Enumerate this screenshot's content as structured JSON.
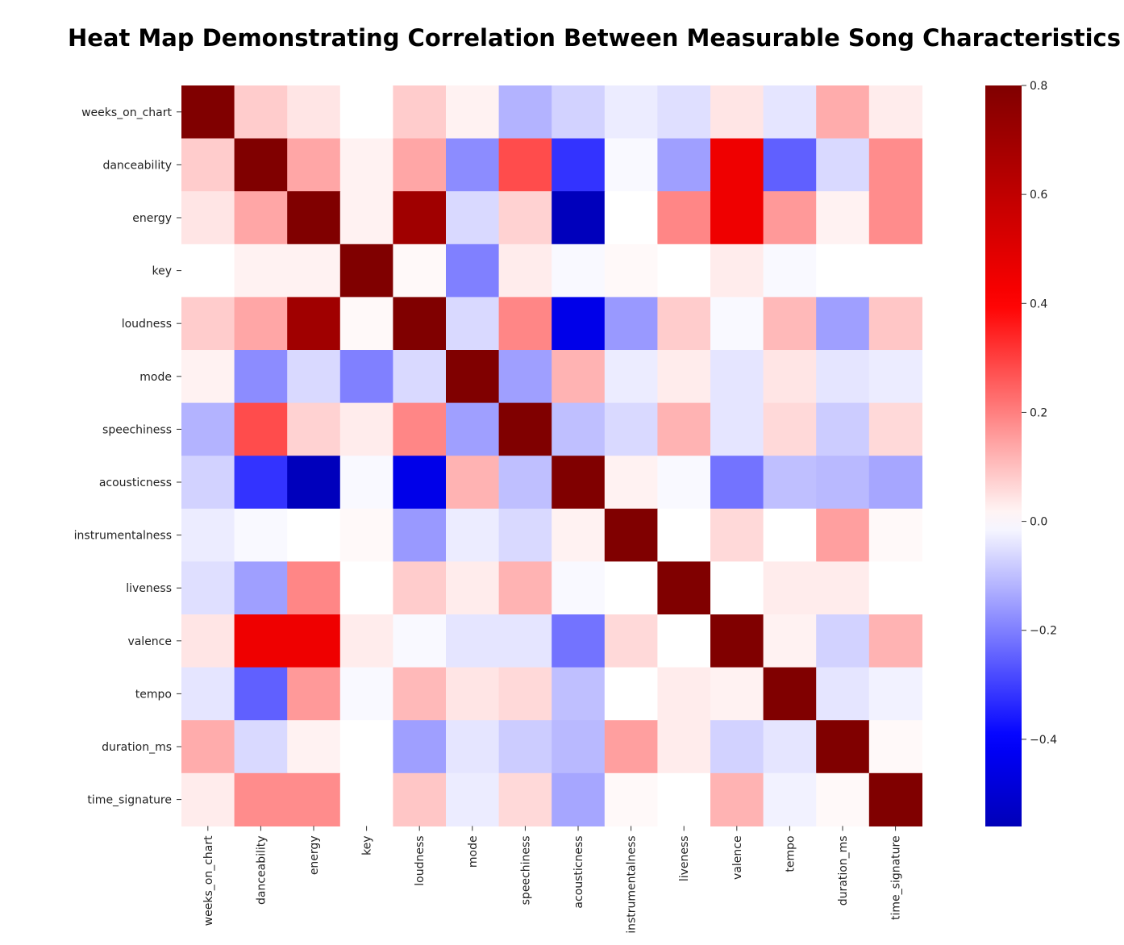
{
  "chart_data": {
    "type": "heatmap",
    "title": "Heat Map Demonstrating Correlation Between Measurable Song Characteristics",
    "x_labels": [
      "weeks_on_chart",
      "danceability",
      "energy",
      "key",
      "loudness",
      "mode",
      "speechiness",
      "acousticness",
      "instrumentalness",
      "liveness",
      "valence",
      "tempo",
      "duration_ms",
      "time_signature"
    ],
    "y_labels": [
      "weeks_on_chart",
      "danceability",
      "energy",
      "key",
      "loudness",
      "mode",
      "speechiness",
      "acousticness",
      "instrumentalness",
      "liveness",
      "valence",
      "tempo",
      "duration_ms",
      "time_signature"
    ],
    "values": [
      [
        1.0,
        0.08,
        0.04,
        0.0,
        0.08,
        0.02,
        -0.12,
        -0.07,
        -0.03,
        -0.05,
        0.04,
        -0.04,
        0.13,
        0.03
      ],
      [
        0.08,
        1.0,
        0.14,
        0.02,
        0.14,
        -0.18,
        0.28,
        -0.32,
        -0.01,
        -0.15,
        0.45,
        -0.25,
        -0.06,
        0.18
      ],
      [
        0.04,
        0.14,
        1.0,
        0.02,
        0.7,
        -0.06,
        0.07,
        -0.55,
        0.0,
        0.19,
        0.45,
        0.16,
        0.02,
        0.18
      ],
      [
        0.0,
        0.02,
        0.02,
        1.0,
        0.01,
        -0.2,
        0.03,
        -0.01,
        0.01,
        0.0,
        0.03,
        -0.01,
        0.0,
        0.0
      ],
      [
        0.08,
        0.14,
        0.7,
        0.01,
        1.0,
        -0.06,
        0.19,
        -0.45,
        -0.16,
        0.08,
        -0.01,
        0.11,
        -0.15,
        0.09
      ],
      [
        0.02,
        -0.18,
        -0.06,
        -0.2,
        -0.06,
        1.0,
        -0.15,
        0.12,
        -0.03,
        0.03,
        -0.04,
        0.04,
        -0.04,
        -0.03
      ],
      [
        -0.12,
        0.28,
        0.07,
        0.03,
        0.19,
        -0.15,
        1.0,
        -0.1,
        -0.06,
        0.12,
        -0.04,
        0.06,
        -0.08,
        0.06
      ],
      [
        -0.07,
        -0.32,
        -0.55,
        -0.01,
        -0.45,
        0.12,
        -0.1,
        1.0,
        0.02,
        -0.01,
        -0.22,
        -0.1,
        -0.11,
        -0.14
      ],
      [
        -0.03,
        -0.01,
        0.0,
        0.01,
        -0.16,
        -0.03,
        -0.06,
        0.02,
        1.0,
        0.0,
        0.06,
        0.0,
        0.15,
        0.01
      ],
      [
        -0.05,
        -0.15,
        0.19,
        0.0,
        0.08,
        0.03,
        0.12,
        -0.01,
        0.0,
        1.0,
        0.0,
        0.03,
        0.03,
        0.0
      ],
      [
        0.04,
        0.45,
        0.45,
        0.03,
        -0.01,
        -0.04,
        -0.04,
        -0.22,
        0.06,
        0.0,
        1.0,
        0.02,
        -0.07,
        0.12
      ],
      [
        -0.04,
        -0.25,
        0.16,
        -0.01,
        0.11,
        0.04,
        0.06,
        -0.1,
        0.0,
        0.03,
        0.02,
        1.0,
        -0.04,
        -0.02
      ],
      [
        0.13,
        -0.06,
        0.02,
        0.0,
        -0.15,
        -0.04,
        -0.08,
        -0.11,
        0.15,
        0.03,
        -0.07,
        -0.04,
        1.0,
        0.01
      ],
      [
        0.03,
        0.18,
        0.18,
        0.0,
        0.09,
        -0.03,
        0.06,
        -0.14,
        0.01,
        0.0,
        0.12,
        -0.02,
        0.01,
        1.0
      ]
    ],
    "colorbar": {
      "colormap": "seismic",
      "vmin": -0.56,
      "vmax": 0.8,
      "ticks": [
        0.8,
        0.6,
        0.4,
        0.2,
        0.0,
        -0.2,
        -0.4
      ],
      "tick_labels": [
        "0.8",
        "0.6",
        "0.4",
        "0.2",
        "0.0",
        "−0.2",
        "−0.4"
      ]
    }
  }
}
